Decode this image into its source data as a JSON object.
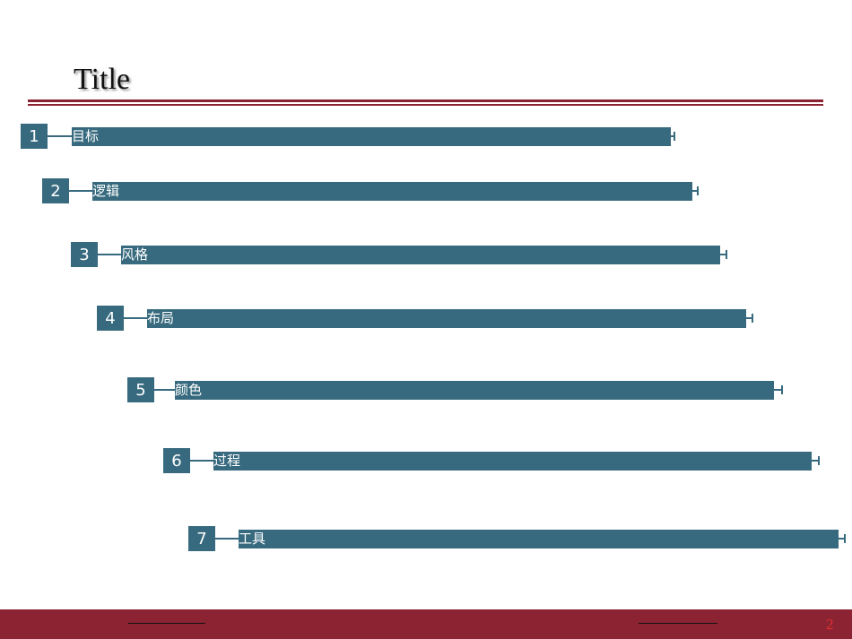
{
  "header": {
    "title": "Title"
  },
  "items": [
    {
      "number": "1",
      "label": "目标"
    },
    {
      "number": "2",
      "label": "逻辑"
    },
    {
      "number": "3",
      "label": "风格"
    },
    {
      "number": "4",
      "label": "布局"
    },
    {
      "number": "5",
      "label": "颜色"
    },
    {
      "number": "6",
      "label": "过程"
    },
    {
      "number": "7",
      "label": "工具"
    }
  ],
  "footer": {
    "page_number": "2"
  }
}
